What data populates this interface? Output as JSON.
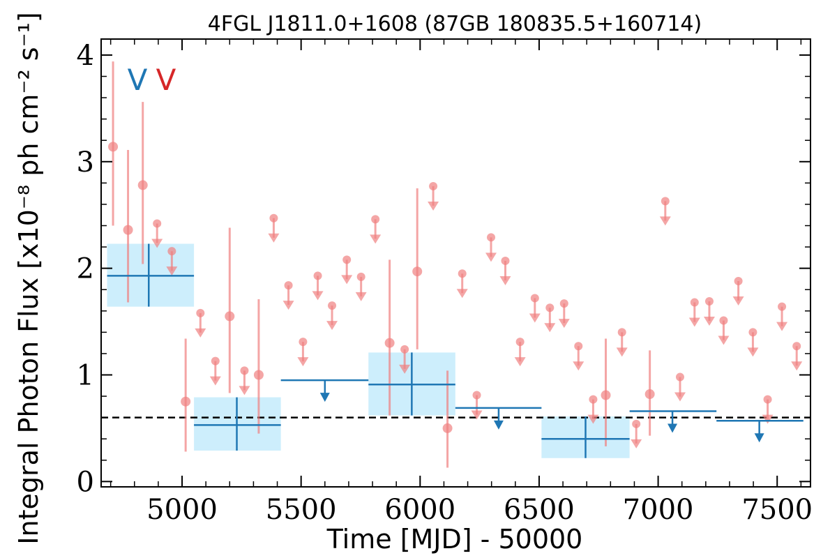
{
  "chart_data": {
    "type": "scatter",
    "title": "4FGL J1811.0+1608 (87GB 180835.5+160714)",
    "xlabel": "Time [MJD] - 50000",
    "ylabel": "Integral Photon Flux [x10⁻⁸ ph cm⁻² s⁻¹]",
    "xlim": [
      4660,
      7640
    ],
    "ylim": [
      -0.05,
      4.15
    ],
    "x_ticks": [
      5000,
      5500,
      6000,
      6500,
      7000,
      7500
    ],
    "y_ticks": [
      0,
      1,
      2,
      3,
      4
    ],
    "grid": false,
    "markers": [
      {
        "label": "V",
        "color": "#1f77b4"
      },
      {
        "label": "V",
        "color": "#d62728"
      }
    ],
    "reference_flux": 0.6,
    "colors": {
      "short_bins": "#f08080",
      "long_bins": "#1f77b4",
      "long_bins_band": "#cdeefc"
    },
    "series": [
      {
        "points": [
          {
            "x": 4710,
            "y": 3.14,
            "lo": 2.4,
            "hi": 3.94
          },
          {
            "x": 4773,
            "y": 2.36,
            "lo": 1.68,
            "hi": 3.11
          },
          {
            "x": 4835,
            "y": 2.78,
            "lo": 2.04,
            "hi": 3.56
          },
          {
            "x": 5015,
            "y": 0.75,
            "lo": 0.28,
            "hi": 1.34
          },
          {
            "x": 5200,
            "y": 1.55,
            "lo": 0.83,
            "hi": 2.38
          },
          {
            "x": 5322,
            "y": 1.0,
            "lo": 0.45,
            "hi": 1.71
          },
          {
            "x": 5872,
            "y": 1.3,
            "lo": 0.62,
            "hi": 2.08
          },
          {
            "x": 5988,
            "y": 1.97,
            "lo": 1.24,
            "hi": 2.75
          },
          {
            "x": 6115,
            "y": 0.5,
            "lo": 0.13,
            "hi": 1.04
          },
          {
            "x": 6780,
            "y": 0.81,
            "lo": 0.33,
            "hi": 1.34
          },
          {
            "x": 6965,
            "y": 0.82,
            "lo": 0.43,
            "hi": 1.23
          }
        ],
        "upper_limits": [
          {
            "x": 4895,
            "y": 2.42
          },
          {
            "x": 4957,
            "y": 2.16
          },
          {
            "x": 5077,
            "y": 1.58
          },
          {
            "x": 5140,
            "y": 1.13
          },
          {
            "x": 5262,
            "y": 1.04
          },
          {
            "x": 5385,
            "y": 2.47
          },
          {
            "x": 5447,
            "y": 1.84
          },
          {
            "x": 5508,
            "y": 1.31
          },
          {
            "x": 5570,
            "y": 1.93
          },
          {
            "x": 5630,
            "y": 1.65
          },
          {
            "x": 5692,
            "y": 2.08
          },
          {
            "x": 5752,
            "y": 1.92
          },
          {
            "x": 5812,
            "y": 2.46
          },
          {
            "x": 5935,
            "y": 1.24
          },
          {
            "x": 6055,
            "y": 2.77
          },
          {
            "x": 6177,
            "y": 1.95
          },
          {
            "x": 6238,
            "y": 0.81
          },
          {
            "x": 6298,
            "y": 2.29
          },
          {
            "x": 6358,
            "y": 2.07
          },
          {
            "x": 6420,
            "y": 1.31
          },
          {
            "x": 6482,
            "y": 1.72
          },
          {
            "x": 6545,
            "y": 1.63
          },
          {
            "x": 6605,
            "y": 1.67
          },
          {
            "x": 6665,
            "y": 1.27
          },
          {
            "x": 6727,
            "y": 0.77
          },
          {
            "x": 6848,
            "y": 1.4
          },
          {
            "x": 6908,
            "y": 0.54
          },
          {
            "x": 7030,
            "y": 2.63
          },
          {
            "x": 7092,
            "y": 0.98
          },
          {
            "x": 7153,
            "y": 1.68
          },
          {
            "x": 7215,
            "y": 1.69
          },
          {
            "x": 7275,
            "y": 1.51
          },
          {
            "x": 7337,
            "y": 1.88
          },
          {
            "x": 7398,
            "y": 1.4
          },
          {
            "x": 7460,
            "y": 0.77
          },
          {
            "x": 7520,
            "y": 1.64
          },
          {
            "x": 7582,
            "y": 1.27
          }
        ]
      },
      {
        "points": [
          {
            "x": 4860,
            "xmin": 4685,
            "xmax": 5050,
            "y": 1.93,
            "lo": 1.64,
            "hi": 2.23
          },
          {
            "x": 5230,
            "xmin": 5050,
            "xmax": 5415,
            "y": 0.53,
            "lo": 0.29,
            "hi": 0.79
          },
          {
            "x": 5965,
            "xmin": 5783,
            "xmax": 6148,
            "y": 0.91,
            "lo": 0.62,
            "hi": 1.21
          },
          {
            "x": 6695,
            "xmin": 6510,
            "xmax": 6880,
            "y": 0.4,
            "lo": 0.22,
            "hi": 0.61
          }
        ],
        "upper_limits": [
          {
            "x": 5600,
            "xmin": 5415,
            "xmax": 5783,
            "y": 0.95
          },
          {
            "x": 6330,
            "xmin": 6148,
            "xmax": 6510,
            "y": 0.69
          },
          {
            "x": 7060,
            "xmin": 6880,
            "xmax": 7245,
            "y": 0.66
          },
          {
            "x": 7425,
            "xmin": 7245,
            "xmax": 7610,
            "y": 0.57
          }
        ]
      }
    ]
  }
}
